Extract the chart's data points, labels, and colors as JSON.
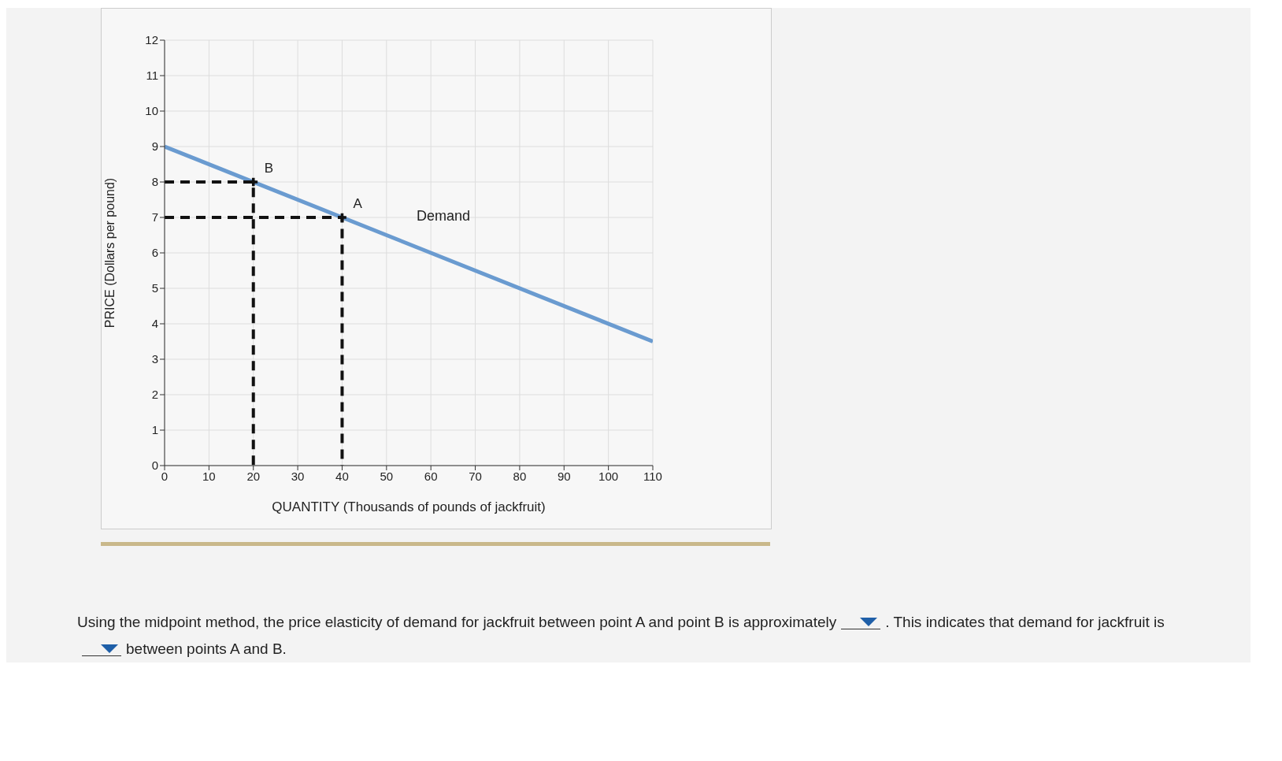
{
  "chart_data": {
    "type": "line",
    "xlabel": "QUANTITY (Thousands of pounds of jackfruit)",
    "ylabel": "PRICE (Dollars per pound)",
    "xlim": [
      0,
      110
    ],
    "xticks": [
      0,
      10,
      20,
      30,
      40,
      50,
      60,
      70,
      80,
      90,
      100,
      110
    ],
    "ylim": [
      0,
      12
    ],
    "yticks": [
      0,
      1,
      2,
      3,
      4,
      5,
      6,
      7,
      8,
      9,
      10,
      11,
      12
    ],
    "grid": true,
    "series": [
      {
        "name": "Demand",
        "color": "#6a9bd0",
        "x": [
          0,
          110
        ],
        "values": [
          9,
          3.5
        ],
        "line_style": "solid"
      },
      {
        "color": "#111111",
        "x": [
          0,
          20,
          20
        ],
        "values": [
          8,
          8,
          0
        ],
        "line_style": "dashed"
      },
      {
        "color": "#111111",
        "x": [
          0,
          40,
          40
        ],
        "values": [
          7,
          7,
          0
        ],
        "line_style": "dashed"
      },
      {
        "type": "scatter",
        "color": "#111111",
        "x": [
          20,
          40
        ],
        "values": [
          8,
          7
        ],
        "marker": "cross"
      }
    ],
    "annotations": [
      {
        "text": "B",
        "x": 20,
        "y": 8
      },
      {
        "text": "A",
        "x": 40,
        "y": 7
      },
      "Using the midpoint method, the price elasticity of demand for jackfruit between point A and point B is approximately",
      ". This indicates that demand for jackfruit is",
      "between points A and B."
    ]
  }
}
